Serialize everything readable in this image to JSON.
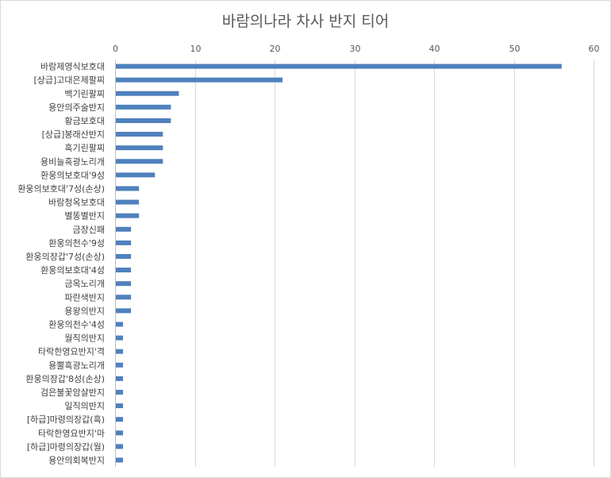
{
  "chart_data": {
    "type": "bar",
    "orientation": "horizontal",
    "title": "바람의나라 차사 반지 티어",
    "xlabel": "",
    "ylabel": "",
    "xlim": [
      0,
      60
    ],
    "x_ticks": [
      "0",
      "10",
      "20",
      "30",
      "40",
      "50",
      "60"
    ],
    "x_axis_position": "top",
    "grid": true,
    "legend": "none",
    "bar_color": "#4f81bd",
    "categories": [
      "바람제영식보호대",
      "[상급]고대은제팔찌",
      "백기린팔찌",
      "용안의주술반지",
      "황금보호대",
      "[상급]봉래산반지",
      "흑기린팔찌",
      "용비늘흑광노리개",
      "환웅의보호대'9성",
      "환웅의보호대'7성(손상)",
      "바람청옥보호대",
      "별똥별반지",
      "금장신패",
      "환웅의천수'9성",
      "환웅의장갑'7성(손상)",
      "환웅의보호대'4성",
      "금옥노리개",
      "파란색반지",
      "용왕의반지",
      "환웅의천수'4성",
      "월직의반지",
      "타락한영요반지'격",
      "용뿔흑광노리개",
      "환웅의장갑'8성(손상)",
      "검은불꽃암살반지",
      "일직의반지",
      "[하급]마령의장갑(흑)",
      "타락한영요반지'마",
      "[하급]마령의장갑(월)",
      "용안의회복반지"
    ],
    "values": [
      56,
      21,
      8,
      7,
      7,
      6,
      6,
      6,
      5,
      3,
      3,
      3,
      2,
      2,
      2,
      2,
      2,
      2,
      2,
      1,
      1,
      1,
      1,
      1,
      1,
      1,
      1,
      1,
      1,
      1
    ]
  }
}
